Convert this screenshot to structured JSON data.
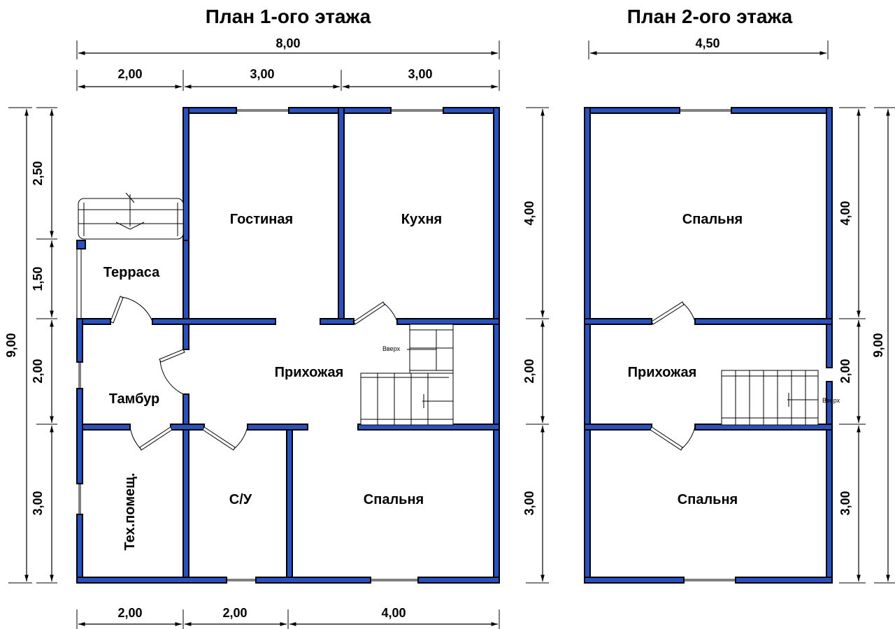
{
  "plans": [
    {
      "title": "План 1-ого этажа",
      "rooms": [
        "Гостиная",
        "Кухня",
        "Терраса",
        "Прихожая",
        "Тамбур",
        "Тех.помещ.",
        "С/У",
        "Спальня"
      ],
      "stair_label": "Вверх",
      "dims_top_total": "8,00",
      "dims_top": [
        "2,00",
        "3,00",
        "3,00"
      ],
      "dims_bottom": [
        "2,00",
        "2,00",
        "4,00"
      ],
      "dims_left": [
        "2,50",
        "1,50",
        "2,00",
        "3,00"
      ],
      "dims_left_total": "9,00",
      "dims_right": [
        "4,00",
        "2,00",
        "3,00"
      ]
    },
    {
      "title": "План 2-ого этажа",
      "rooms": [
        "Спальня",
        "Прихожая",
        "Спальня"
      ],
      "stair_label": "Вверх",
      "dims_top_total": "4,50",
      "dims_right": [
        "4,00",
        "2,00",
        "3,00"
      ],
      "dims_right_total": "9,00"
    }
  ],
  "colors": {
    "wall": "#2a52be",
    "lines": "#000000",
    "background": "#ffffff"
  }
}
